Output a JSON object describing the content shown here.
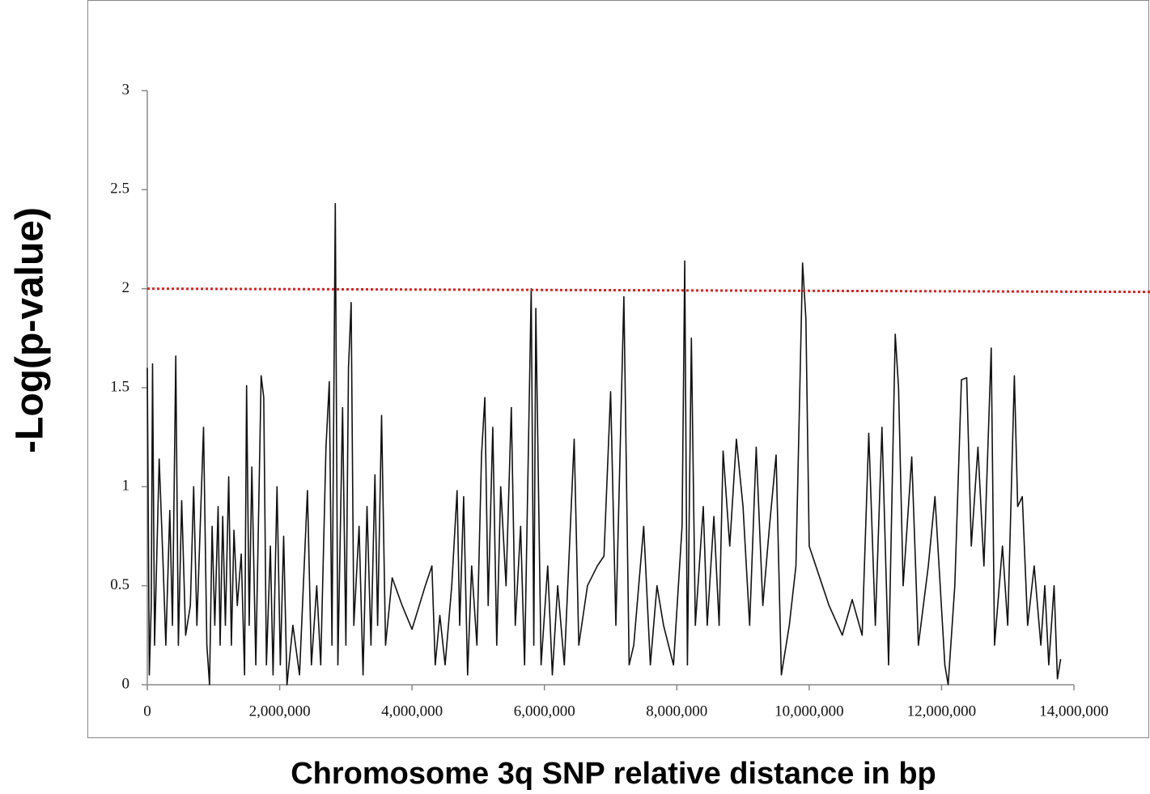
{
  "chart_data": {
    "type": "line",
    "xlabel": "Chromosome 3q SNP relative distance in bp",
    "ylabel": "-Log(p-value)",
    "xlim": [
      0,
      14000000
    ],
    "xticks": [
      0,
      {
        "value": 2000000,
        "label": "2,000,000"
      },
      {
        "value": 4000000,
        "label": "4,000,000"
      },
      {
        "value": 6000000,
        "label": "6,000,000"
      },
      {
        "value": 8000000,
        "label": "8,000,000"
      },
      {
        "value": 10000000,
        "label": "10,000,000"
      },
      {
        "value": 12000000,
        "label": "12,000,000"
      },
      {
        "value": 14000000,
        "label": "14,000,000"
      }
    ],
    "ylim": [
      0,
      3
    ],
    "yticks": [
      0,
      0.5,
      1,
      1.5,
      2,
      2.5,
      3
    ],
    "grid": false,
    "hline": {
      "value": 2,
      "color": "#e02020"
    },
    "series": [
      {
        "color": "#111111",
        "x": [
          0,
          30000,
          60000,
          80000,
          110000,
          180000,
          240000,
          280000,
          340000,
          380000,
          430000,
          470000,
          520000,
          580000,
          650000,
          700000,
          750000,
          850000,
          900000,
          940000,
          980000,
          1020000,
          1070000,
          1100000,
          1140000,
          1180000,
          1230000,
          1270000,
          1310000,
          1360000,
          1420000,
          1470000,
          1500000,
          1540000,
          1580000,
          1640000,
          1720000,
          1760000,
          1800000,
          1860000,
          1900000,
          1960000,
          2010000,
          2060000,
          2110000,
          2200000,
          2300000,
          2420000,
          2480000,
          2560000,
          2620000,
          2700000,
          2750000,
          2790000,
          2840000,
          2880000,
          2950000,
          3000000,
          3040000,
          3080000,
          3120000,
          3200000,
          3260000,
          3320000,
          3380000,
          3440000,
          3480000,
          3540000,
          3600000,
          3700000,
          3850000,
          4000000,
          4200000,
          4300000,
          4350000,
          4420000,
          4500000,
          4600000,
          4680000,
          4720000,
          4780000,
          4840000,
          4900000,
          4980000,
          5050000,
          5100000,
          5150000,
          5220000,
          5280000,
          5340000,
          5420000,
          5500000,
          5560000,
          5640000,
          5700000,
          5800000,
          5840000,
          5870000,
          5950000,
          6050000,
          6120000,
          6200000,
          6300000,
          6450000,
          6520000,
          6650000,
          6800000,
          6900000,
          7000000,
          7080000,
          7200000,
          7280000,
          7350000,
          7500000,
          7600000,
          7700000,
          7800000,
          7950000,
          8080000,
          8120000,
          8160000,
          8220000,
          8280000,
          8400000,
          8460000,
          8560000,
          8640000,
          8700000,
          8800000,
          8900000,
          9000000,
          9100000,
          9200000,
          9300000,
          9400000,
          9500000,
          9580000,
          9700000,
          9800000,
          9900000,
          9950000,
          10000000,
          10300000,
          10500000,
          10650000,
          10800000,
          10900000,
          11000000,
          11100000,
          11200000,
          11300000,
          11350000,
          11420000,
          11550000,
          11650000,
          11800000,
          11900000,
          12050000,
          12100000,
          12200000,
          12300000,
          12380000,
          12450000,
          12550000,
          12640000,
          12750000,
          12800000,
          12920000,
          13000000,
          13100000,
          13150000,
          13220000,
          13300000,
          13400000,
          13500000,
          13560000,
          13620000,
          13700000,
          13750000,
          13800000
        ],
        "values": [
          1.6,
          0.05,
          0.4,
          1.62,
          0.2,
          1.14,
          0.6,
          0.2,
          0.88,
          0.3,
          1.66,
          0.2,
          0.93,
          0.25,
          0.4,
          1.0,
          0.3,
          1.3,
          0.2,
          0,
          0.8,
          0.3,
          0.9,
          0.2,
          0.85,
          0.3,
          1.05,
          0.2,
          0.78,
          0.4,
          0.66,
          0.05,
          1.51,
          0.3,
          1.1,
          0.1,
          1.56,
          1.45,
          0.1,
          0.7,
          0.05,
          1.0,
          0.1,
          0.75,
          0.0,
          0.3,
          0.05,
          0.98,
          0.1,
          0.5,
          0.1,
          1.2,
          1.53,
          0.2,
          2.43,
          0.1,
          1.4,
          0.2,
          1.6,
          1.93,
          0.3,
          0.8,
          0.05,
          0.9,
          0.2,
          1.06,
          0.3,
          1.36,
          0.2,
          0.54,
          0.4,
          0.28,
          0.5,
          0.6,
          0.1,
          0.35,
          0.1,
          0.5,
          0.98,
          0.3,
          0.95,
          0.05,
          0.6,
          0.2,
          1.16,
          1.45,
          0.4,
          1.3,
          0.2,
          1.0,
          0.5,
          1.4,
          0.3,
          0.8,
          0.1,
          2.0,
          0.2,
          1.9,
          0.1,
          0.6,
          0.05,
          0.5,
          0.1,
          1.24,
          0.2,
          0.5,
          0.6,
          0.65,
          1.48,
          0.3,
          1.96,
          0.1,
          0.2,
          0.8,
          0.1,
          0.5,
          0.3,
          0.1,
          0.8,
          2.14,
          0.1,
          1.75,
          0.3,
          0.9,
          0.3,
          0.85,
          0.3,
          1.18,
          0.7,
          1.24,
          0.9,
          0.3,
          1.2,
          0.4,
          0.8,
          1.16,
          0.05,
          0.3,
          0.6,
          2.13,
          1.85,
          0.7,
          0.4,
          0.25,
          0.43,
          0.25,
          1.27,
          0.3,
          1.3,
          0.1,
          1.77,
          1.5,
          0.5,
          1.15,
          0.2,
          0.6,
          0.95,
          0.1,
          0.0,
          0.5,
          1.54,
          1.55,
          0.7,
          1.2,
          0.6,
          1.7,
          0.2,
          0.7,
          0.3,
          1.56,
          0.9,
          0.95,
          0.3,
          0.6,
          0.2,
          0.5,
          0.1,
          0.5,
          0.03,
          0.13
        ]
      }
    ]
  }
}
